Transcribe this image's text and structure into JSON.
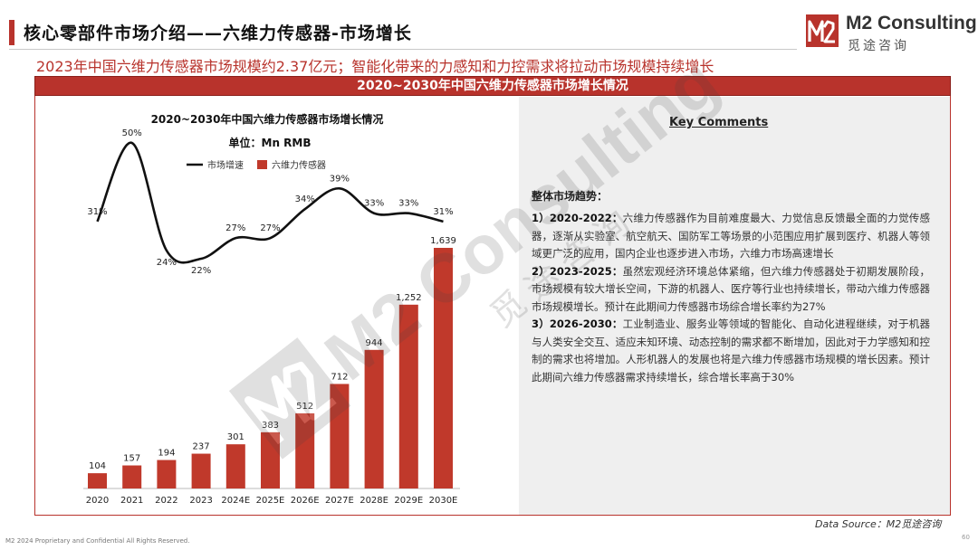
{
  "header": {
    "title": "核心零部件市场介绍——六维力传感器-市场增长",
    "subtitle": "2023年中国六维力传感器市场规模约2.37亿元；智能化带来的力感知和力控需求将拉动市场规模持续增长"
  },
  "logo": {
    "name": "M2 Consulting",
    "sub": "觅途咨询",
    "watermark_text": "M2 Consulting",
    "watermark_sub": "觅途咨询"
  },
  "panel": {
    "header": "2020~2030年中国六维力传感器市场增长情况"
  },
  "chart_data": {
    "type": "bar",
    "title": "2020~2030年中国六维力传感器市场增长情况",
    "unit": "单位：Mn RMB",
    "categories": [
      "2020",
      "2021",
      "2022",
      "2023",
      "2024E",
      "2025E",
      "2026E",
      "2027E",
      "2028E",
      "2029E",
      "2030E"
    ],
    "series": [
      {
        "name": "六维力传感器",
        "type": "bar",
        "color": "#c0392b",
        "values": [
          104,
          157,
          194,
          237,
          301,
          383,
          512,
          712,
          944,
          1252,
          1639
        ]
      },
      {
        "name": "市场增速",
        "type": "line",
        "color": "#111111",
        "values": [
          31,
          50,
          24,
          22,
          27,
          27,
          34,
          39,
          33,
          33,
          31
        ]
      }
    ],
    "line_labels": [
      "31%",
      "50%",
      "24%",
      "22%",
      "27%",
      "27%",
      "34%",
      "39%",
      "33%",
      "33%",
      "31%"
    ],
    "ylim": [
      0,
      1800
    ],
    "line_ylim": [
      0,
      60
    ],
    "legend_position": "top-center",
    "grid": false
  },
  "comments": {
    "title": "Key Comments",
    "trend_label": "整体市场趋势：",
    "items": [
      {
        "lead": "1）2020-2022：",
        "text": "六维力传感器作为目前难度最大、力觉信息反馈最全面的力觉传感器，逐渐从实验室、航空航天、国防军工等场景的小范围应用扩展到医疗、机器人等领域更广泛的应用，国内企业也逐步进入市场，六维力市场高速增长"
      },
      {
        "lead": "2）2023-2025：",
        "text": "虽然宏观经济环境总体紧缩，但六维力传感器处于初期发展阶段，市场规模有较大增长空间，下游的机器人、医疗等行业也持续增长，带动六维力传感器市场规模增长。预计在此期间力传感器市场综合增长率约为27%"
      },
      {
        "lead": "3）2026-2030：",
        "text": "工业制造业、服务业等领域的智能化、自动化进程继续，对于机器与人类安全交互、适应未知环境、动态控制的需求都不断增加，因此对于力学感知和控制的需求也将增加。人形机器人的发展也将是六维力传感器市场规模的增长因素。预计此期间六维力传感器需求持续增长，综合增长率高于30%"
      }
    ]
  },
  "footer": {
    "source": "Data Source：M2觅途咨询",
    "copyright": "M2 2024 Proprietary and Confidential All Rights Reserved.",
    "page": "60"
  }
}
